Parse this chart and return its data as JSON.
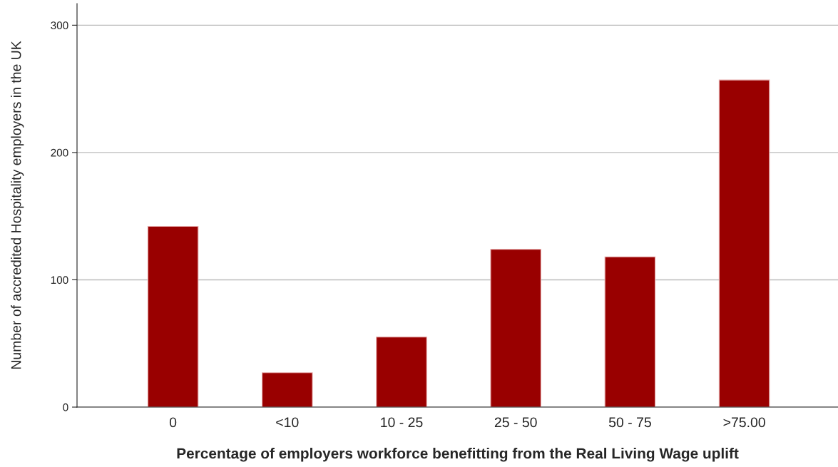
{
  "chart_data": {
    "type": "bar",
    "xlabel": "Percentage of employers workforce benefitting from the Real Living Wage uplift",
    "ylabel": "Number of accredited Hospitality employers in the UK",
    "categories": [
      "0",
      "<10",
      "10 - 25",
      "25 - 50",
      "50 - 75",
      ">75.00"
    ],
    "values": [
      142,
      27,
      55,
      124,
      118,
      257
    ],
    "color": "#990000",
    "ylim": [
      0,
      317
    ],
    "yticks": [
      0,
      100,
      200,
      300
    ],
    "grid": "y"
  }
}
